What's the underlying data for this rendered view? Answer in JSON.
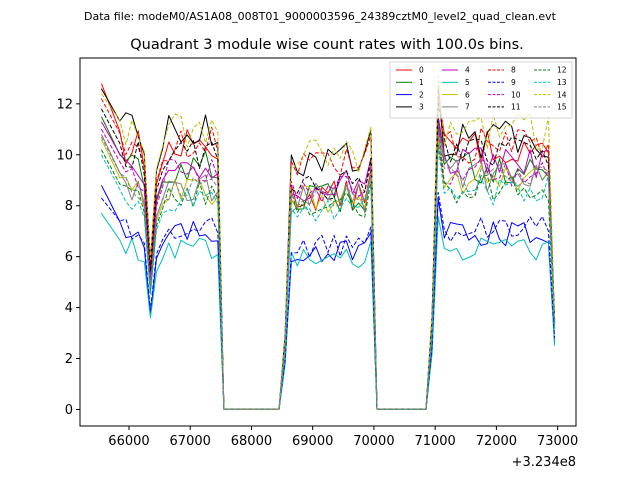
{
  "header": {
    "file_line": "Data file: modeM0/AS1A08_008T01_9000003596_24389cztM0_level2_quad_clean.evt"
  },
  "chart_data": {
    "type": "line",
    "title": "Quadrant 3 module wise count rates with 100.0s bins.",
    "xlabel": "",
    "ylabel": "",
    "x_offset_label": "+3.234e8",
    "xlim": [
      65200,
      73300
    ],
    "ylim": [
      -0.65,
      13.8
    ],
    "x_ticks": [
      66000,
      67000,
      68000,
      69000,
      70000,
      71000,
      72000,
      73000
    ],
    "x_tick_labels": [
      "66000",
      "67000",
      "68000",
      "69000",
      "70000",
      "71000",
      "72000",
      "73000"
    ],
    "y_ticks": [
      0,
      2,
      4,
      6,
      8,
      10,
      12
    ],
    "y_tick_labels": [
      "0",
      "2",
      "4",
      "6",
      "8",
      "10",
      "12"
    ],
    "x_start": 65550,
    "x_step": 100,
    "n_points": 75,
    "gap_bins": [
      [
        20,
        29
      ],
      [
        45,
        53
      ]
    ],
    "legend_position": "upper right",
    "series": [
      {
        "name": "0",
        "color": "#ff0000",
        "dash": "solid",
        "seg_means": [
          10.3,
          8.4,
          10.3
        ],
        "dip": 5.5,
        "start": 12.8,
        "end": 3.5
      },
      {
        "name": "1",
        "color": "#008000",
        "dash": "solid",
        "seg_means": [
          9.5,
          8.3,
          9.5
        ],
        "dip": 5.0,
        "start": 11.5,
        "end": 3.5
      },
      {
        "name": "2",
        "color": "#0000ff",
        "dash": "solid",
        "seg_means": [
          6.9,
          6.2,
          6.9
        ],
        "dip": 3.7,
        "start": 8.8,
        "end": 2.6
      },
      {
        "name": "3",
        "color": "#000000",
        "dash": "solid",
        "seg_means": [
          10.9,
          9.8,
          10.6
        ],
        "dip": 5.8,
        "start": 12.6,
        "end": 3.5
      },
      {
        "name": "4",
        "color": "#bf00bf",
        "dash": "solid",
        "seg_means": [
          9.6,
          8.8,
          9.6
        ],
        "dip": 5.2,
        "start": 11.3,
        "end": 3.4
      },
      {
        "name": "5",
        "color": "#00bfbf",
        "dash": "solid",
        "seg_means": [
          6.3,
          5.9,
          6.3
        ],
        "dip": 3.6,
        "start": 7.7,
        "end": 2.5
      },
      {
        "name": "6",
        "color": "#bfbf00",
        "dash": "solid",
        "seg_means": [
          8.6,
          8.3,
          9.0
        ],
        "dip": 4.7,
        "start": 10.6,
        "end": 3.3
      },
      {
        "name": "7",
        "color": "#808080",
        "dash": "solid",
        "seg_means": [
          8.8,
          8.3,
          9.2
        ],
        "dip": 4.8,
        "start": 10.8,
        "end": 3.3
      },
      {
        "name": "8",
        "color": "#ff0000",
        "dash": "dashed",
        "seg_means": [
          10.4,
          9.6,
          10.4
        ],
        "dip": 5.6,
        "start": 12.2,
        "end": 3.4
      },
      {
        "name": "9",
        "color": "#0000ff",
        "dash": "dashed",
        "seg_means": [
          7.1,
          6.4,
          7.1
        ],
        "dip": 3.9,
        "start": 8.3,
        "end": 2.8
      },
      {
        "name": "10",
        "color": "#bf00bf",
        "dash": "dashed",
        "seg_means": [
          9.3,
          8.6,
          9.3
        ],
        "dip": 5.1,
        "start": 11.0,
        "end": 3.4
      },
      {
        "name": "11",
        "color": "#000000",
        "dash": "dashed",
        "seg_means": [
          10.0,
          8.8,
          10.0
        ],
        "dip": 5.4,
        "start": 11.8,
        "end": 3.5
      },
      {
        "name": "12",
        "color": "#008000",
        "dash": "dashed",
        "seg_means": [
          8.4,
          8.0,
          8.7
        ],
        "dip": 4.6,
        "start": 10.2,
        "end": 3.2
      },
      {
        "name": "13",
        "color": "#00bfbf",
        "dash": "dashed",
        "seg_means": [
          8.2,
          7.8,
          8.6
        ],
        "dip": 4.5,
        "start": 10.0,
        "end": 3.1
      },
      {
        "name": "14",
        "color": "#bfbf00",
        "dash": "dashed",
        "seg_means": [
          11.0,
          9.9,
          10.9
        ],
        "dip": 5.9,
        "start": 12.4,
        "end": 3.6
      },
      {
        "name": "15",
        "color": "#808080",
        "dash": "dashed",
        "seg_means": [
          8.8,
          8.2,
          9.0
        ],
        "dip": 4.8,
        "start": 10.7,
        "end": 3.3
      }
    ]
  }
}
